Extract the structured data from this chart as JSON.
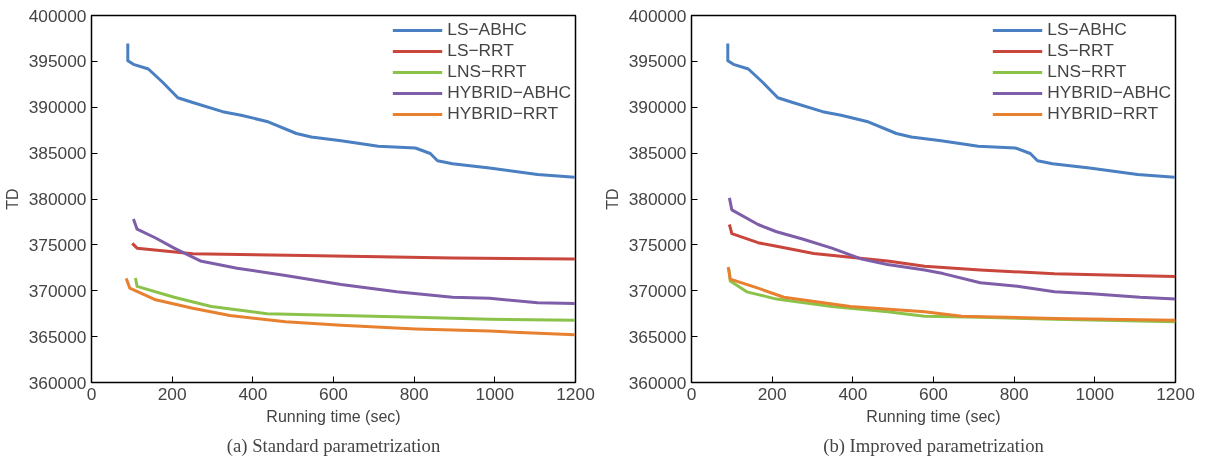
{
  "chart_data": [
    {
      "type": "line",
      "title": "(a) Standard parametrization",
      "xlabel": "Running time (sec)",
      "ylabel": "TD",
      "xlim": [
        0,
        1200
      ],
      "ylim": [
        360000,
        400000
      ],
      "xticks": [
        0,
        200,
        400,
        600,
        800,
        1000,
        1200
      ],
      "yticks": [
        360000,
        365000,
        370000,
        375000,
        380000,
        385000,
        390000,
        395000,
        400000
      ],
      "grid": false,
      "legend": "top right",
      "line_style": "solid",
      "marker": "none",
      "series": [
        {
          "name": "LS−ABHC",
          "color": "#4a7fc1",
          "x": [
            90,
            90,
            104,
            141,
            177,
            214,
            251,
            325,
            371,
            435,
            508,
            545,
            619,
            711,
            803,
            840,
            858,
            895,
            987,
            1106,
            1198
          ],
          "values": [
            396944,
            395080,
            394680,
            394170,
            392700,
            391030,
            390520,
            389520,
            389130,
            388450,
            387140,
            386750,
            386350,
            385750,
            385560,
            384960,
            384170,
            383850,
            383370,
            382660,
            382380
          ]
        },
        {
          "name": "LS−RRT",
          "color": "#c9463d",
          "x": [
            101,
            113,
            251,
            527,
            895,
            1198
          ],
          "values": [
            375160,
            374640,
            374040,
            373850,
            373570,
            373450
          ]
        },
        {
          "name": "LNS−RRT",
          "color": "#8bc34a",
          "x": [
            109,
            113,
            205,
            297,
            435,
            619,
            803,
            987,
            1198
          ],
          "values": [
            371390,
            370480,
            369290,
            368290,
            367500,
            367300,
            367100,
            366900,
            366790
          ]
        },
        {
          "name": "HYBRID−ABHC",
          "color": "#7e5ea8",
          "x": [
            104,
            113,
            159,
            205,
            270,
            361,
            481,
            619,
            757,
            895,
            987,
            1106,
            1198
          ],
          "values": [
            377820,
            376710,
            375750,
            374640,
            373250,
            372460,
            371670,
            370670,
            369880,
            369290,
            369170,
            368690,
            368610
          ]
        },
        {
          "name": "HYBRID−RRT",
          "color": "#e8812f",
          "x": [
            86,
            95,
            159,
            251,
            343,
            481,
            619,
            803,
            987,
            1198
          ],
          "values": [
            371350,
            370280,
            369010,
            368100,
            367300,
            366630,
            366230,
            365830,
            365600,
            365200
          ]
        }
      ]
    },
    {
      "type": "line",
      "title": "(b) Improved parametrization",
      "xlabel": "Running time (sec)",
      "ylabel": "TD",
      "xlim": [
        0,
        1200
      ],
      "ylim": [
        360000,
        400000
      ],
      "xticks": [
        0,
        200,
        400,
        600,
        800,
        1000,
        1200
      ],
      "yticks": [
        360000,
        365000,
        370000,
        375000,
        380000,
        385000,
        390000,
        395000,
        400000
      ],
      "grid": false,
      "legend": "top right",
      "line_style": "solid",
      "marker": "none",
      "series": [
        {
          "name": "LS−ABHC",
          "color": "#4a7fc1",
          "x": [
            90,
            90,
            104,
            141,
            177,
            214,
            251,
            325,
            371,
            435,
            508,
            545,
            619,
            711,
            803,
            840,
            858,
            895,
            987,
            1106,
            1198
          ],
          "values": [
            396944,
            395080,
            394680,
            394170,
            392700,
            391030,
            390520,
            389520,
            389130,
            388450,
            387140,
            386750,
            386350,
            385750,
            385560,
            384960,
            384170,
            383850,
            383370,
            382660,
            382380
          ]
        },
        {
          "name": "LS−RRT",
          "color": "#c9463d",
          "x": [
            94,
            100,
            165,
            211,
            303,
            394,
            486,
            578,
            716,
            900,
            1084,
            1200
          ],
          "values": [
            377220,
            376230,
            375240,
            374840,
            374050,
            373650,
            373250,
            372660,
            372260,
            371860,
            371670,
            371550
          ]
        },
        {
          "name": "LNS−RRT",
          "color": "#8bc34a",
          "x": [
            93,
            96,
            137,
            211,
            348,
            486,
            578,
            716,
            900,
            1200
          ],
          "values": [
            372340,
            371070,
            369880,
            369090,
            368290,
            367700,
            367220,
            367100,
            366900,
            366630
          ]
        },
        {
          "name": "HYBRID−ABHC",
          "color": "#7e5ea8",
          "x": [
            94,
            100,
            165,
            211,
            275,
            348,
            422,
            486,
            578,
            624,
            716,
            808,
            900,
            992,
            1112,
            1200
          ],
          "values": [
            380120,
            378810,
            377220,
            376430,
            375640,
            374640,
            373450,
            372860,
            372260,
            371870,
            370870,
            370480,
            369880,
            369680,
            369290,
            369090
          ]
        },
        {
          "name": "HYBRID−RRT",
          "color": "#e8812f",
          "x": [
            91,
            96,
            165,
            229,
            394,
            578,
            670,
            900,
            1200
          ],
          "values": [
            372580,
            371270,
            370280,
            369290,
            368290,
            367700,
            367220,
            366980,
            366790
          ]
        }
      ]
    }
  ]
}
